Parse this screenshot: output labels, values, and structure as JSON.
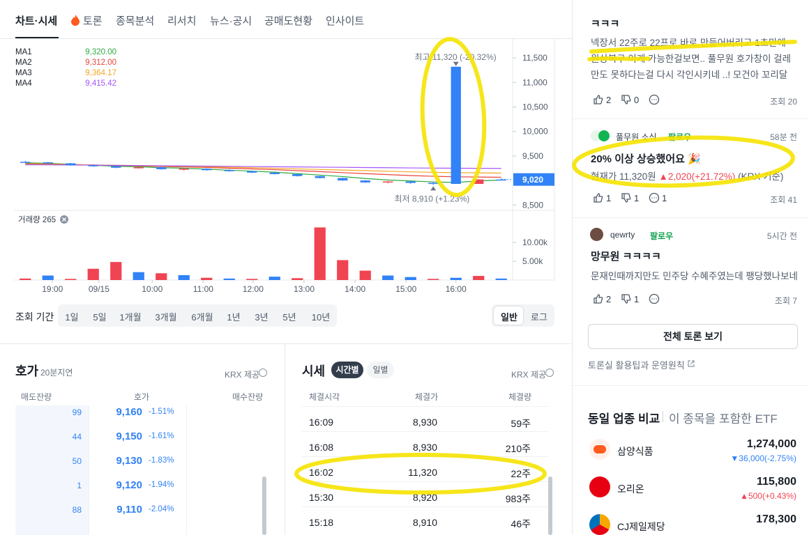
{
  "tabs": [
    "차트·시세",
    "토론",
    "종목분석",
    "리서치",
    "뉴스·공시",
    "공매도현황",
    "인사이트"
  ],
  "chart_data": [
    {
      "type": "candlestick",
      "open": [
        9380,
        9370,
        9350,
        9310,
        9290,
        9260,
        9270,
        9230,
        9240,
        9210,
        9190,
        9160,
        9130,
        9090,
        9050,
        9000,
        8960,
        8980,
        8950,
        11320,
        8930,
        9020
      ],
      "high": [
        9400,
        9380,
        9360,
        9330,
        9300,
        9280,
        9280,
        9250,
        9250,
        9230,
        9200,
        9180,
        9140,
        9100,
        9060,
        9010,
        8990,
        9000,
        8970,
        11320,
        9030,
        9040
      ],
      "low": [
        9360,
        9340,
        9300,
        9280,
        9250,
        9240,
        9220,
        9200,
        9200,
        9180,
        9150,
        9120,
        9080,
        9040,
        8990,
        8950,
        8940,
        8930,
        8910,
        8930,
        8930,
        9000
      ],
      "close": [
        9370,
        9350,
        9310,
        9290,
        9260,
        9270,
        9230,
        9240,
        9210,
        9190,
        9160,
        9130,
        9090,
        9050,
        9000,
        8960,
        8980,
        8950,
        8930,
        8930,
        9020,
        9020
      ],
      "up_color": "#f04452",
      "down_color": "#3182f6",
      "series": [
        {
          "name": "MA1",
          "legend_value": "9,320.00",
          "color": "#2eaa3f",
          "values": [
            9360,
            9350,
            9330,
            9310,
            9290,
            9280,
            9260,
            9250,
            9230,
            9210,
            9190,
            9170,
            9140,
            9110,
            9080,
            9040,
            9010,
            8990,
            8970,
            8960,
            8990,
            9010
          ]
        },
        {
          "name": "MA2",
          "legend_value": "9,312.00",
          "color": "#e8443a",
          "values": [
            9340,
            9335,
            9325,
            9315,
            9305,
            9295,
            9285,
            9275,
            9265,
            9250,
            9235,
            9220,
            9200,
            9180,
            9160,
            9140,
            9120,
            9100,
            9085,
            9075,
            9070,
            9065
          ]
        },
        {
          "name": "MA3",
          "legend_value": "9,364.17",
          "color": "#f5a623",
          "values": [
            9330,
            9327,
            9322,
            9316,
            9310,
            9303,
            9296,
            9288,
            9280,
            9270,
            9260,
            9248,
            9236,
            9224,
            9212,
            9200,
            9188,
            9176,
            9165,
            9160,
            9155,
            9150
          ]
        },
        {
          "name": "MA4",
          "legend_value": "9,415.42",
          "color": "#a855f7",
          "values": [
            9320,
            9318,
            9315,
            9312,
            9308,
            9304,
            9300,
            9296,
            9292,
            9288,
            9284,
            9280,
            9276,
            9272,
            9268,
            9264,
            9260,
            9256,
            9252,
            9250,
            9248,
            9246
          ]
        }
      ],
      "ylim": [
        8390,
        11800
      ],
      "yticks": [
        {
          "value": 11500,
          "label": "11,500"
        },
        {
          "value": 11000,
          "label": "11,000"
        },
        {
          "value": 10500,
          "label": "10,500"
        },
        {
          "value": 10000,
          "label": "10,000"
        },
        {
          "value": 9500,
          "label": "9,500"
        },
        {
          "value": 8500,
          "label": "8,500"
        }
      ],
      "high_label": "최고  11,320 (-20.32%)",
      "low_label": "최저  8,910 (+1.23%)",
      "current_price": 9020,
      "current_price_label": "9,020"
    },
    {
      "type": "bar",
      "title": "거래량 265",
      "values": [
        400,
        1200,
        300,
        3000,
        4800,
        2100,
        1800,
        1300,
        600,
        400,
        300,
        900,
        500,
        14000,
        5300,
        2500,
        1200,
        800,
        300,
        600,
        1100,
        400
      ],
      "colors": [
        "#f04452",
        "#3182f6",
        "#f04452",
        "#f04452",
        "#f04452",
        "#3182f6",
        "#f04452",
        "#3182f6",
        "#f04452",
        "#3182f6",
        "#f04452",
        "#3182f6",
        "#f04452",
        "#f04452",
        "#f04452",
        "#f04452",
        "#3182f6",
        "#3182f6",
        "#f04452",
        "#3182f6",
        "#f04452",
        "#3182f6"
      ],
      "ylim": [
        0,
        15200
      ],
      "yticks": [
        {
          "value": 10000,
          "label": "10.00k"
        },
        {
          "value": 5000,
          "label": "5.00k"
        }
      ],
      "xticks": [
        {
          "value": 1.2,
          "label": "19:00"
        },
        {
          "value": 3.25,
          "label": "09/15"
        },
        {
          "value": 5.6,
          "label": "10:00"
        },
        {
          "value": 7.85,
          "label": "11:00"
        },
        {
          "value": 10.05,
          "label": "12:00"
        },
        {
          "value": 12.3,
          "label": "13:00"
        },
        {
          "value": 14.55,
          "label": "14:00"
        },
        {
          "value": 16.8,
          "label": "15:00"
        },
        {
          "value": 19,
          "label": "16:00"
        }
      ]
    }
  ],
  "period": {
    "label": "조회 기간",
    "options": [
      "1일",
      "5일",
      "1개월",
      "3개월",
      "6개월",
      "1년",
      "3년",
      "5년",
      "10년"
    ],
    "scale": [
      "일반",
      "로그"
    ]
  },
  "orderbook": {
    "title": "호가",
    "delay": "20분지연",
    "source": "KRX 제공",
    "headers": [
      "매도잔량",
      "호가",
      "매수잔량"
    ],
    "rows": [
      [
        "99",
        "9,160",
        "-1.51%"
      ],
      [
        "44",
        "9,150",
        "-1.61%"
      ],
      [
        "50",
        "9,130",
        "-1.83%"
      ],
      [
        "1",
        "9,120",
        "-1.94%"
      ],
      [
        "88",
        "9,110",
        "-2.04%"
      ]
    ]
  },
  "trades": {
    "title": "시세",
    "tabs": [
      "시간별",
      "일별"
    ],
    "source": "KRX 제공",
    "headers": [
      "체결시각",
      "체결가",
      "체결량"
    ],
    "rows": [
      [
        "16:09",
        "8,930",
        "59주"
      ],
      [
        "16:08",
        "8,930",
        "210주"
      ],
      [
        "16:02",
        "11,320",
        "22주"
      ],
      [
        "15:30",
        "8,920",
        "983주"
      ],
      [
        "15:18",
        "8,910",
        "46주"
      ]
    ]
  },
  "posts": [
    {
      "title": "ㅋㅋㅋ",
      "body": "넥장서 22주로 22프로 바로 만들어버리고 1초만에 원상복구 이게 가능한걸보면.. 풀무원 호가창이 걸레만도 못하다는걸 다시 각인시키네 ..! 모건아 꼬리달아서 공매...",
      "likes": 2,
      "dislikes": 0,
      "views": "조회 20"
    },
    {
      "author": "풀무원 소식",
      "follow": "팔로우",
      "time": "58분 전",
      "title": "20% 이상 상승했어요 🎉",
      "body": [
        "현재가 11,320원",
        "▲2,020(+21.72%)",
        "(KRX 기준)"
      ],
      "likes": 1,
      "dislikes": 1,
      "comments": 1,
      "views": "조회 41"
    },
    {
      "author": "qewrty",
      "follow": "팔로우",
      "time": "5시간 전",
      "title": "망무원 ㅋㅋㅋㅋ",
      "body": "문재인때까지만도 민주당 수혜주였는데 팽당했나보네",
      "likes": 2,
      "dislikes": 1,
      "views": "조회 7"
    }
  ],
  "all_posts_button": "전체 토론 보기",
  "guide_link": "토론실 활용팁과 운영원칙",
  "compare": {
    "title": "동일 업종 비교",
    "subtitle": "이 종목을 포함한 ETF",
    "items": [
      {
        "name": "삼양식품",
        "price": "1,274,000",
        "change": "▼36,000(-2.75%)"
      },
      {
        "name": "오리온",
        "price": "115,800",
        "change": "▲500(+0.43%)"
      },
      {
        "name": "CJ제일제당",
        "price": "178,300"
      }
    ]
  }
}
